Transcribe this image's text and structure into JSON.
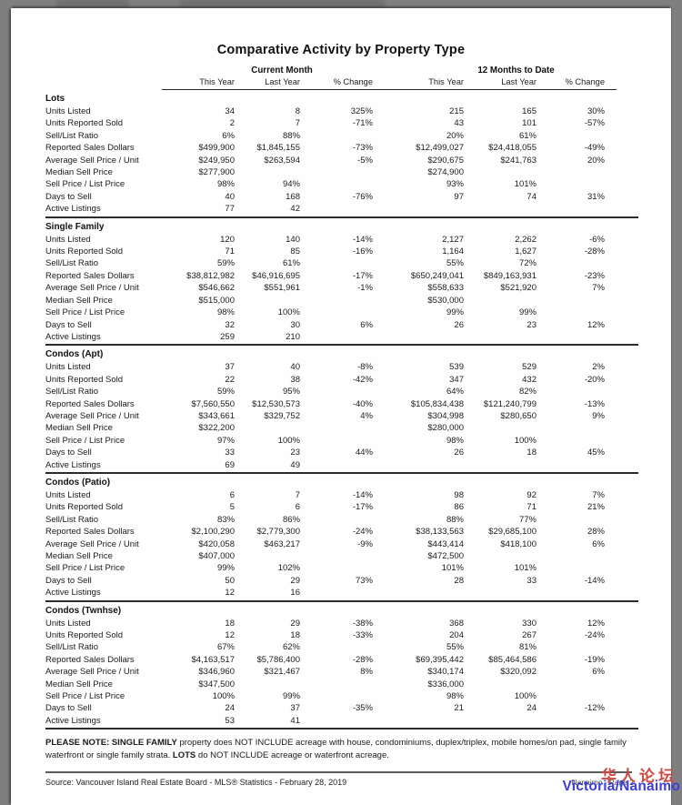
{
  "doc": {
    "title": "Comparative Activity by Property Type",
    "table": {
      "group_headers": [
        "Current Month",
        "12 Months to Date"
      ],
      "col_headers": [
        "This Year",
        "Last Year",
        "% Change",
        "This Year",
        "Last Year",
        "% Change"
      ],
      "row_labels": [
        "Units Listed",
        "Units Reported Sold",
        "Sell/List Ratio",
        "Reported Sales Dollars",
        "Average Sell Price / Unit",
        "Median Sell Price",
        "Sell Price / List Price",
        "Days to Sell",
        "Active Listings"
      ],
      "sections": [
        {
          "name": "Lots",
          "rows": [
            [
              "34",
              "8",
              "325%",
              "215",
              "165",
              "30%"
            ],
            [
              "2",
              "7",
              "-71%",
              "43",
              "101",
              "-57%"
            ],
            [
              "6%",
              "88%",
              "",
              "20%",
              "61%",
              ""
            ],
            [
              "$499,900",
              "$1,845,155",
              "-73%",
              "$12,499,027",
              "$24,418,055",
              "-49%"
            ],
            [
              "$249,950",
              "$263,594",
              "-5%",
              "$290,675",
              "$241,763",
              "20%"
            ],
            [
              "$277,900",
              "",
              "",
              "$274,900",
              "",
              ""
            ],
            [
              "98%",
              "94%",
              "",
              "93%",
              "101%",
              ""
            ],
            [
              "40",
              "168",
              "-76%",
              "97",
              "74",
              "31%"
            ],
            [
              "77",
              "42",
              "",
              "",
              "",
              ""
            ]
          ]
        },
        {
          "name": "Single Family",
          "rows": [
            [
              "120",
              "140",
              "-14%",
              "2,127",
              "2,262",
              "-6%"
            ],
            [
              "71",
              "85",
              "-16%",
              "1,164",
              "1,627",
              "-28%"
            ],
            [
              "59%",
              "61%",
              "",
              "55%",
              "72%",
              ""
            ],
            [
              "$38,812,982",
              "$46,916,695",
              "-17%",
              "$650,249,041",
              "$849,163,931",
              "-23%"
            ],
            [
              "$546,662",
              "$551,961",
              "-1%",
              "$558,633",
              "$521,920",
              "7%"
            ],
            [
              "$515,000",
              "",
              "",
              "$530,000",
              "",
              ""
            ],
            [
              "98%",
              "100%",
              "",
              "99%",
              "99%",
              ""
            ],
            [
              "32",
              "30",
              "6%",
              "26",
              "23",
              "12%"
            ],
            [
              "259",
              "210",
              "",
              "",
              "",
              ""
            ]
          ]
        },
        {
          "name": "Condos (Apt)",
          "rows": [
            [
              "37",
              "40",
              "-8%",
              "539",
              "529",
              "2%"
            ],
            [
              "22",
              "38",
              "-42%",
              "347",
              "432",
              "-20%"
            ],
            [
              "59%",
              "95%",
              "",
              "64%",
              "82%",
              ""
            ],
            [
              "$7,560,550",
              "$12,530,573",
              "-40%",
              "$105,834,438",
              "$121,240,799",
              "-13%"
            ],
            [
              "$343,661",
              "$329,752",
              "4%",
              "$304,998",
              "$280,650",
              "9%"
            ],
            [
              "$322,200",
              "",
              "",
              "$280,000",
              "",
              ""
            ],
            [
              "97%",
              "100%",
              "",
              "98%",
              "100%",
              ""
            ],
            [
              "33",
              "23",
              "44%",
              "26",
              "18",
              "45%"
            ],
            [
              "69",
              "49",
              "",
              "",
              "",
              ""
            ]
          ]
        },
        {
          "name": "Condos (Patio)",
          "rows": [
            [
              "6",
              "7",
              "-14%",
              "98",
              "92",
              "7%"
            ],
            [
              "5",
              "6",
              "-17%",
              "86",
              "71",
              "21%"
            ],
            [
              "83%",
              "86%",
              "",
              "88%",
              "77%",
              ""
            ],
            [
              "$2,100,290",
              "$2,779,300",
              "-24%",
              "$38,133,563",
              "$29,685,100",
              "28%"
            ],
            [
              "$420,058",
              "$463,217",
              "-9%",
              "$443,414",
              "$418,100",
              "6%"
            ],
            [
              "$407,000",
              "",
              "",
              "$472,500",
              "",
              ""
            ],
            [
              "99%",
              "102%",
              "",
              "101%",
              "101%",
              ""
            ],
            [
              "50",
              "29",
              "73%",
              "28",
              "33",
              "-14%"
            ],
            [
              "12",
              "16",
              "",
              "",
              "",
              ""
            ]
          ]
        },
        {
          "name": "Condos (Twnhse)",
          "rows": [
            [
              "18",
              "29",
              "-38%",
              "368",
              "330",
              "12%"
            ],
            [
              "12",
              "18",
              "-33%",
              "204",
              "267",
              "-24%"
            ],
            [
              "67%",
              "62%",
              "",
              "55%",
              "81%",
              ""
            ],
            [
              "$4,163,517",
              "$5,786,400",
              "-28%",
              "$69,395,442",
              "$85,464,586",
              "-19%"
            ],
            [
              "$346,960",
              "$321,467",
              "8%",
              "$340,174",
              "$320,092",
              "6%"
            ],
            [
              "$347,500",
              "",
              "",
              "$336,000",
              "",
              ""
            ],
            [
              "100%",
              "99%",
              "",
              "98%",
              "100%",
              ""
            ],
            [
              "24",
              "37",
              "-35%",
              "21",
              "24",
              "-12%"
            ],
            [
              "53",
              "41",
              "",
              "",
              "",
              ""
            ]
          ]
        }
      ]
    },
    "note": {
      "bold1": "PLEASE NOTE: SINGLE FAMILY",
      "text1": " property does NOT INCLUDE acreage with house, condominiums, duplex/triplex, mobile homes/on pad, single family waterfront or single family strata.  ",
      "bold2": "LOTS",
      "text2": " do NOT INCLUDE acreage or waterfront acreage."
    },
    "footer": {
      "source": "Source: Vancouver Island Real Estate Board - MLS® Statistics - February 28, 2019",
      "page_label": "Nanaimo - Page 2"
    },
    "watermark": {
      "line1": "华人论坛",
      "line2": "Victoria/Nanaimo",
      "color1": "#cc4a44",
      "color2": "#3e3ed8"
    }
  }
}
